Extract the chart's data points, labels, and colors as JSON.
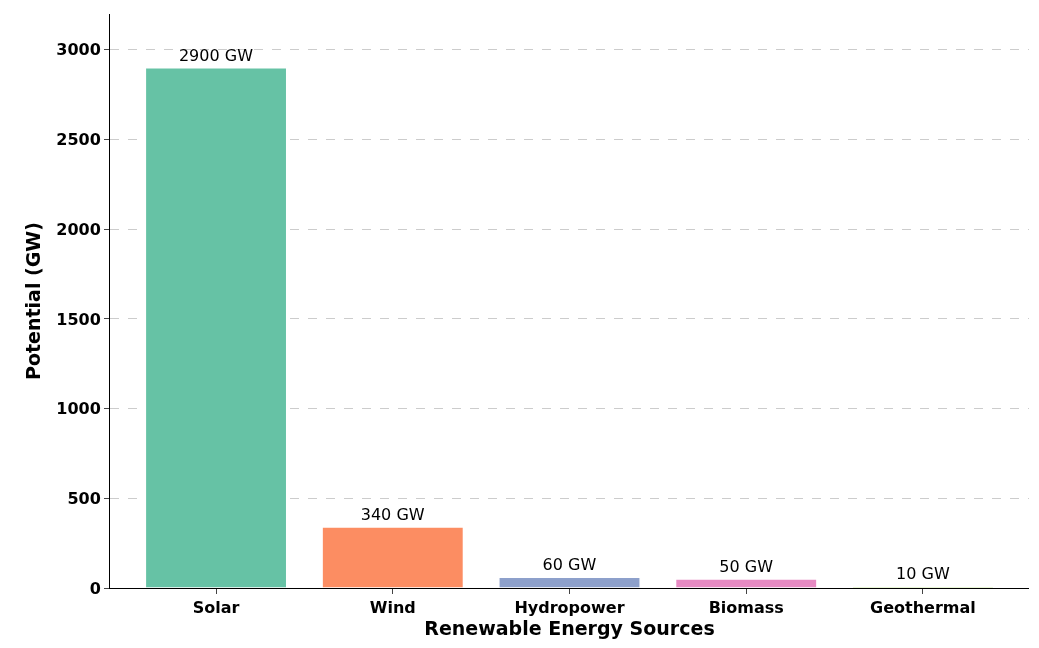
{
  "chart_data": {
    "type": "bar",
    "xlabel": "Renewable Energy Sources",
    "ylabel": "Potential (GW)",
    "categories": [
      "Solar",
      "Wind",
      "Hydropower",
      "Biomass",
      "Geothermal"
    ],
    "values": [
      2900,
      340,
      60,
      50,
      10
    ],
    "colors": [
      "#66c2a5",
      "#fc8d62",
      "#8da0cb",
      "#e78ac3",
      "#a6d854"
    ],
    "value_labels": [
      "2900 GW",
      "340 GW",
      "60 GW",
      "50 GW",
      "10 GW"
    ],
    "ylim": [
      0,
      3200
    ],
    "yticks": [
      0,
      500,
      1000,
      1500,
      2000,
      2500,
      3000
    ],
    "grid": "y"
  }
}
